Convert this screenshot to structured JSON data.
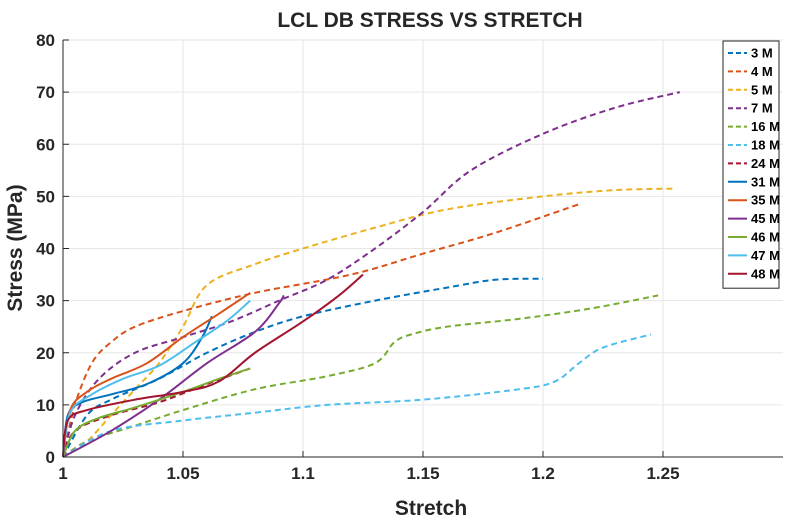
{
  "chart_data": {
    "type": "line",
    "title": "LCL DB STRESS VS STRETCH",
    "xlabel": "Stretch",
    "ylabel": "Stress (MPa)",
    "xlim": [
      1,
      1.3
    ],
    "ylim": [
      0,
      80
    ],
    "xticks": [
      1,
      1.05,
      1.1,
      1.15,
      1.2,
      1.25
    ],
    "xtick_labels": [
      "1",
      "1.05",
      "1.1",
      "1.15",
      "1.2",
      "1.25"
    ],
    "yticks": [
      0,
      10,
      20,
      30,
      40,
      50,
      60,
      70,
      80
    ],
    "ytick_labels": [
      "0",
      "10",
      "20",
      "30",
      "40",
      "50",
      "60",
      "70",
      "80"
    ],
    "grid": true,
    "legend_position": "top-right",
    "series": [
      {
        "name": "3 M",
        "style": "dashed",
        "color": "#0072BD",
        "x": [
          1.0,
          1.01,
          1.02,
          1.04,
          1.06,
          1.08,
          1.1,
          1.13,
          1.16,
          1.18,
          1.2
        ],
        "y": [
          0,
          8,
          11,
          15,
          20,
          24,
          27,
          30,
          32.5,
          34,
          34.2
        ]
      },
      {
        "name": "4 M",
        "style": "dashed",
        "color": "#D95319",
        "x": [
          1.0,
          1.005,
          1.012,
          1.02,
          1.03,
          1.05,
          1.08,
          1.12,
          1.15,
          1.18,
          1.215
        ],
        "y": [
          0,
          10,
          18,
          22,
          25,
          28,
          31.5,
          35,
          39,
          43,
          48.5
        ]
      },
      {
        "name": "5 M",
        "style": "dashed",
        "color": "#EDB120",
        "x": [
          1.0,
          1.01,
          1.02,
          1.03,
          1.04,
          1.05,
          1.06,
          1.08,
          1.1,
          1.13,
          1.16,
          1.2,
          1.23,
          1.255
        ],
        "y": [
          0,
          3,
          8,
          13,
          18,
          25,
          33,
          37,
          40,
          44,
          47.5,
          50,
          51.2,
          51.5
        ]
      },
      {
        "name": "7 M",
        "style": "dashed",
        "color": "#7E2F8E",
        "x": [
          1.0,
          1.005,
          1.015,
          1.03,
          1.05,
          1.07,
          1.09,
          1.11,
          1.13,
          1.15,
          1.17,
          1.2,
          1.23,
          1.257
        ],
        "y": [
          0,
          8,
          15,
          20,
          23,
          26,
          30,
          34,
          40,
          47,
          55,
          62,
          67,
          70
        ]
      },
      {
        "name": "16 M",
        "style": "dashed",
        "color": "#77AC30",
        "x": [
          1.0,
          1.01,
          1.03,
          1.05,
          1.08,
          1.11,
          1.13,
          1.138,
          1.145,
          1.16,
          1.19,
          1.22,
          1.248
        ],
        "y": [
          0,
          3,
          6,
          9,
          13,
          15.5,
          18,
          22,
          23.5,
          25,
          26.5,
          28.5,
          31
        ]
      },
      {
        "name": "18 M",
        "style": "dashed",
        "color": "#4DBEEE",
        "x": [
          1.0,
          1.02,
          1.05,
          1.08,
          1.11,
          1.15,
          1.19,
          1.205,
          1.215,
          1.225,
          1.245
        ],
        "y": [
          0,
          5,
          7,
          8.5,
          10,
          11,
          13,
          14.5,
          18,
          21,
          23.5
        ]
      },
      {
        "name": "24 M",
        "style": "dashed",
        "color": "#A2142F",
        "x": [
          1.0,
          1.005,
          1.02,
          1.04,
          1.06,
          1.078
        ],
        "y": [
          0,
          5,
          8,
          10.5,
          14,
          17
        ]
      },
      {
        "name": "31 M",
        "style": "solid",
        "color": "#0072BD",
        "x": [
          1.0,
          1.002,
          1.008,
          1.02,
          1.035,
          1.05,
          1.058,
          1.062
        ],
        "y": [
          0,
          8,
          10.5,
          12,
          14,
          18,
          23,
          27
        ]
      },
      {
        "name": "35 M",
        "style": "solid",
        "color": "#D95319",
        "x": [
          1.0,
          1.003,
          1.01,
          1.02,
          1.035,
          1.05,
          1.065,
          1.078
        ],
        "y": [
          0,
          9,
          12.5,
          15,
          18,
          23,
          27.5,
          31.5
        ]
      },
      {
        "name": "45 M",
        "style": "solid",
        "color": "#7E2F8E",
        "x": [
          1.0,
          1.02,
          1.04,
          1.06,
          1.08,
          1.09,
          1.092
        ],
        "y": [
          0,
          5,
          11,
          18,
          24,
          29.5,
          31
        ]
      },
      {
        "name": "46 M",
        "style": "solid",
        "color": "#77AC30",
        "x": [
          1.0,
          1.005,
          1.015,
          1.03,
          1.05,
          1.065,
          1.078
        ],
        "y": [
          0,
          5,
          7.5,
          9.5,
          12.5,
          15,
          17
        ]
      },
      {
        "name": "47 M",
        "style": "solid",
        "color": "#4DBEEE",
        "x": [
          1.0,
          1.003,
          1.012,
          1.025,
          1.04,
          1.055,
          1.068,
          1.078
        ],
        "y": [
          0,
          8.5,
          12,
          15,
          17.5,
          22,
          26,
          30
        ]
      },
      {
        "name": "48 M",
        "style": "solid",
        "color": "#A2142F",
        "x": [
          1.0,
          1.002,
          1.01,
          1.03,
          1.05,
          1.065,
          1.08,
          1.1,
          1.115,
          1.125
        ],
        "y": [
          0,
          7,
          9,
          11,
          12.5,
          14.5,
          20,
          26,
          31,
          35
        ]
      }
    ]
  }
}
